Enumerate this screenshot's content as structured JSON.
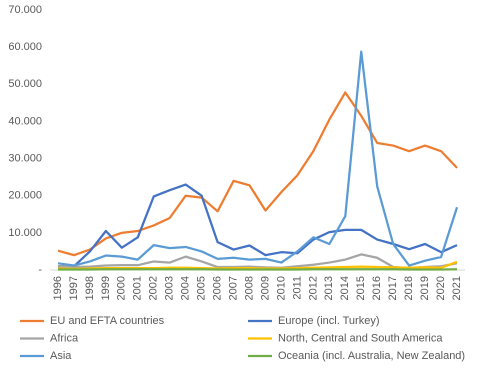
{
  "chart_data": {
    "type": "line",
    "categories": [
      "1996",
      "1997",
      "1998",
      "1999",
      "2000",
      "2001",
      "2002",
      "2003",
      "2004",
      "2005",
      "2006",
      "2007",
      "2008",
      "2009",
      "2010",
      "2011",
      "2012",
      "2013",
      "2014",
      "2015",
      "2016",
      "2017",
      "2018",
      "2019",
      "2020",
      "2021"
    ],
    "series": [
      {
        "name": "EU and EFTA countries",
        "color": "#ed7d31",
        "values": [
          5200,
          4000,
          5500,
          8500,
          10000,
          10500,
          12000,
          14000,
          20000,
          19500,
          15800,
          24000,
          22800,
          16000,
          21000,
          25500,
          32000,
          40500,
          47800,
          41500,
          34200,
          33500,
          32000,
          33500,
          32000,
          27500
        ]
      },
      {
        "name": "Europe (incl. Turkey)",
        "color": "#4472c4",
        "values": [
          1000,
          1000,
          5000,
          10500,
          6000,
          8800,
          19800,
          21500,
          23000,
          20000,
          7500,
          5500,
          6600,
          4000,
          4800,
          4500,
          8200,
          10200,
          10800,
          10800,
          8200,
          7000,
          5600,
          7000,
          4800,
          6700
        ]
      },
      {
        "name": "Africa",
        "color": "#a5a5a5",
        "values": [
          1000,
          800,
          900,
          1200,
          1300,
          1300,
          2300,
          2000,
          3600,
          2300,
          800,
          800,
          900,
          700,
          600,
          1000,
          1400,
          2000,
          2800,
          4200,
          3300,
          800,
          500,
          800,
          1000,
          1800
        ]
      },
      {
        "name": "North, Central and South America",
        "color": "#ffc000",
        "values": [
          400,
          300,
          400,
          500,
          500,
          500,
          500,
          600,
          600,
          500,
          400,
          500,
          500,
          400,
          400,
          500,
          600,
          700,
          800,
          900,
          800,
          700,
          600,
          700,
          600,
          2200
        ]
      },
      {
        "name": "Asia",
        "color": "#5b9bd5",
        "values": [
          1800,
          1200,
          2300,
          3900,
          3600,
          2800,
          6700,
          5900,
          6200,
          5000,
          3000,
          3300,
          2800,
          3000,
          2000,
          5000,
          8800,
          7000,
          14500,
          58800,
          22500,
          7000,
          1200,
          2500,
          3500,
          16900
        ]
      },
      {
        "name": "Oceania (incl. Australia, New Zealand)",
        "color": "#70ad47",
        "values": [
          150,
          150,
          150,
          200,
          200,
          200,
          200,
          200,
          200,
          200,
          150,
          150,
          150,
          150,
          150,
          150,
          200,
          200,
          200,
          200,
          200,
          200,
          150,
          150,
          150,
          200
        ]
      }
    ],
    "ylim": [
      0,
      70000
    ],
    "yticks": [
      {
        "value": 0,
        "label": "-"
      },
      {
        "value": 10000,
        "label": "10.000"
      },
      {
        "value": 20000,
        "label": "20.000"
      },
      {
        "value": 30000,
        "label": "30.000"
      },
      {
        "value": 40000,
        "label": "40.000"
      },
      {
        "value": 50000,
        "label": "50.000"
      },
      {
        "value": 60000,
        "label": "60.000"
      },
      {
        "value": 70000,
        "label": "70.000"
      }
    ],
    "grid": false
  }
}
